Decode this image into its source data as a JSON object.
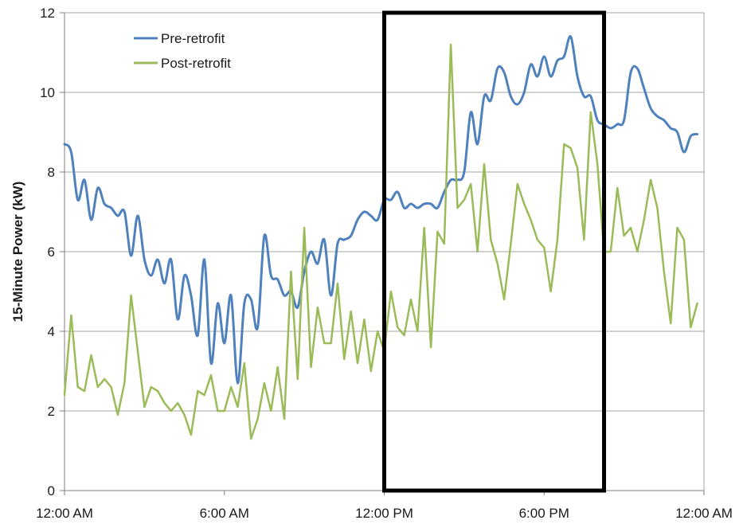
{
  "chart_data": {
    "type": "line",
    "title": "",
    "xlabel": "",
    "ylabel": "15-Minute Power (kW)",
    "ylim": [
      0,
      12
    ],
    "yticks": [
      "0",
      "2",
      "4",
      "6",
      "8",
      "10",
      "12"
    ],
    "xticks": [
      "12:00 AM",
      "6:00 AM",
      "12:00 PM",
      "6:00 PM",
      "12:00 AM"
    ],
    "xlim_hours": [
      0,
      24
    ],
    "grid": "horizontal",
    "legend_position": "top-left",
    "highlight_box_hours": [
      12,
      20.25
    ],
    "colors": {
      "pre": "#4f81bd",
      "post": "#9bbb59",
      "box": "#000000",
      "grid": "#a6a6a6"
    },
    "series": [
      {
        "name": "Pre-retrofit",
        "x": [
          0,
          0.25,
          0.5,
          0.75,
          1,
          1.25,
          1.5,
          1.75,
          2,
          2.25,
          2.5,
          2.75,
          3,
          3.25,
          3.5,
          3.75,
          4,
          4.25,
          4.5,
          4.75,
          5,
          5.25,
          5.5,
          5.75,
          6,
          6.25,
          6.5,
          6.75,
          7,
          7.25,
          7.5,
          7.75,
          8,
          8.25,
          8.5,
          8.75,
          9,
          9.25,
          9.5,
          9.75,
          10,
          10.25,
          10.5,
          10.75,
          11,
          11.25,
          11.5,
          11.75,
          12,
          12.25,
          12.5,
          12.75,
          13,
          13.25,
          13.5,
          13.75,
          14,
          14.25,
          14.5,
          14.75,
          15,
          15.25,
          15.5,
          15.75,
          16,
          16.25,
          16.5,
          16.75,
          17,
          17.25,
          17.5,
          17.75,
          18,
          18.25,
          18.5,
          18.75,
          19,
          19.25,
          19.5,
          19.75,
          20,
          20.25,
          20.5,
          20.75,
          21,
          21.25,
          21.5,
          21.75,
          22,
          22.25,
          22.5,
          22.75,
          23,
          23.25,
          23.5,
          23.75
        ],
        "values": [
          8.7,
          8.5,
          7.3,
          7.8,
          6.8,
          7.6,
          7.2,
          7.1,
          6.9,
          7.0,
          5.9,
          6.9,
          5.8,
          5.4,
          5.8,
          5.2,
          5.8,
          4.3,
          5.4,
          4.9,
          3.9,
          5.8,
          3.2,
          4.7,
          3.7,
          4.9,
          2.7,
          4.7,
          4.8,
          4.1,
          6.4,
          5.4,
          5.3,
          4.9,
          5.0,
          4.6,
          5.5,
          6.0,
          5.7,
          6.3,
          4.9,
          6.2,
          6.3,
          6.4,
          6.8,
          7.0,
          6.9,
          6.8,
          7.3,
          7.3,
          7.5,
          7.1,
          7.2,
          7.1,
          7.2,
          7.2,
          7.1,
          7.5,
          7.8,
          7.8,
          8.0,
          9.5,
          8.7,
          9.9,
          9.8,
          10.6,
          10.5,
          9.9,
          9.7,
          10.0,
          10.7,
          10.4,
          10.9,
          10.4,
          10.8,
          10.9,
          11.4,
          10.4,
          9.9,
          9.9,
          9.3,
          9.2,
          9.1,
          9.2,
          9.3,
          10.5,
          10.6,
          10.1,
          9.6,
          9.4,
          9.3,
          9.1,
          9.0,
          8.5,
          8.9,
          8.95
        ]
      },
      {
        "name": "Post-retrofit",
        "x": [
          0,
          0.25,
          0.5,
          0.75,
          1,
          1.25,
          1.5,
          1.75,
          2,
          2.25,
          2.5,
          2.75,
          3,
          3.25,
          3.5,
          3.75,
          4,
          4.25,
          4.5,
          4.75,
          5,
          5.25,
          5.5,
          5.75,
          6,
          6.25,
          6.5,
          6.75,
          7,
          7.25,
          7.5,
          7.75,
          8,
          8.25,
          8.5,
          8.75,
          9,
          9.25,
          9.5,
          9.75,
          10,
          10.25,
          10.5,
          10.75,
          11,
          11.25,
          11.5,
          11.75,
          12,
          12.25,
          12.5,
          12.75,
          13,
          13.25,
          13.5,
          13.75,
          14,
          14.25,
          14.5,
          14.75,
          15,
          15.25,
          15.5,
          15.75,
          16,
          16.25,
          16.5,
          16.75,
          17,
          17.25,
          17.5,
          17.75,
          18,
          18.25,
          18.5,
          18.75,
          19,
          19.25,
          19.5,
          19.75,
          20,
          20.25,
          20.5,
          20.75,
          21,
          21.25,
          21.5,
          21.75,
          22,
          22.25,
          22.5,
          22.75,
          23,
          23.25,
          23.5,
          23.75
        ],
        "values": [
          2.4,
          4.4,
          2.6,
          2.5,
          3.4,
          2.6,
          2.8,
          2.6,
          1.9,
          2.7,
          4.9,
          3.5,
          2.1,
          2.6,
          2.5,
          2.2,
          2.0,
          2.2,
          1.9,
          1.4,
          2.5,
          2.4,
          2.9,
          2.0,
          2.0,
          2.6,
          2.1,
          3.2,
          1.3,
          1.8,
          2.7,
          2.0,
          3.1,
          1.8,
          5.5,
          2.8,
          6.6,
          3.1,
          4.6,
          3.7,
          3.7,
          5.2,
          3.3,
          4.5,
          3.2,
          4.3,
          3.0,
          4.0,
          3.5,
          5.0,
          4.1,
          3.9,
          4.8,
          4.0,
          6.6,
          3.6,
          6.5,
          6.2,
          11.2,
          7.1,
          7.3,
          7.7,
          6.0,
          8.2,
          6.3,
          5.7,
          4.8,
          6.2,
          7.7,
          7.2,
          6.8,
          6.3,
          6.1,
          5.0,
          6.3,
          8.7,
          8.6,
          8.1,
          6.3,
          9.5,
          8.2,
          6.0,
          6.0,
          7.6,
          6.4,
          6.6,
          6.0,
          6.8,
          7.8,
          7.1,
          5.5,
          4.2,
          6.6,
          6.3,
          4.1,
          4.7
        ]
      }
    ]
  }
}
